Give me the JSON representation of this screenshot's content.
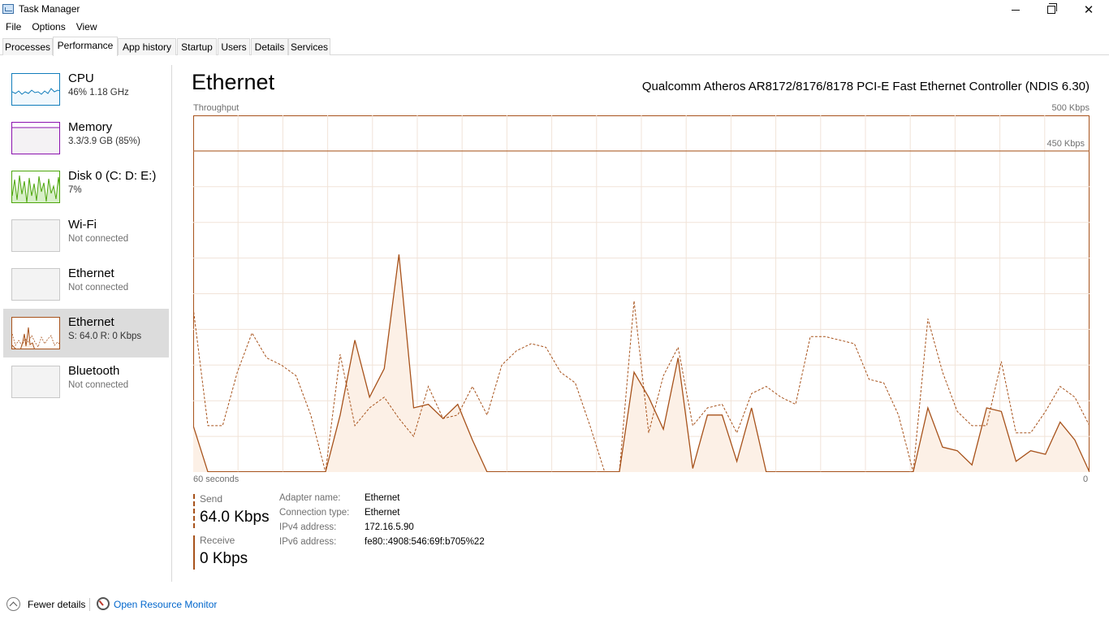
{
  "window": {
    "title": "Task Manager"
  },
  "menu": [
    "File",
    "Options",
    "View"
  ],
  "tabs": [
    {
      "label": "Processes"
    },
    {
      "label": "Performance"
    },
    {
      "label": "App history"
    },
    {
      "label": "Startup"
    },
    {
      "label": "Users"
    },
    {
      "label": "Details"
    },
    {
      "label": "Services"
    }
  ],
  "active_tab": "Performance",
  "sidebar": {
    "items": [
      {
        "name": "CPU",
        "sub": "46% 1.18 GHz"
      },
      {
        "name": "Memory",
        "sub": "3.3/3.9 GB (85%)"
      },
      {
        "name": "Disk 0 (C: D: E:)",
        "sub": "7%"
      },
      {
        "name": "Wi-Fi",
        "sub": "Not connected"
      },
      {
        "name": "Ethernet",
        "sub": "Not connected"
      },
      {
        "name": "Ethernet",
        "sub": "S: 64.0  R: 0 Kbps"
      },
      {
        "name": "Bluetooth",
        "sub": "Not connected"
      }
    ],
    "selected_index": 5
  },
  "main": {
    "title": "Ethernet",
    "adapter_model": "Qualcomm Atheros AR8172/8176/8178 PCI-E Fast Ethernet Controller (NDIS 6.30)",
    "chart_title": "Throughput",
    "max_label": "500 Kbps",
    "limit_label": "450 Kbps",
    "x_left_label": "60 seconds",
    "x_right_label": "0"
  },
  "stats": {
    "send_label": "Send",
    "send_value": "64.0 Kbps",
    "receive_label": "Receive",
    "receive_value": "0 Kbps"
  },
  "properties": [
    {
      "label": "Adapter name:",
      "value": "Ethernet"
    },
    {
      "label": "Connection type:",
      "value": "Ethernet"
    },
    {
      "label": "IPv4 address:",
      "value": "172.16.5.90"
    },
    {
      "label": "IPv6 address:",
      "value": "fe80::4908:546:69f:b705%22"
    }
  ],
  "footer": {
    "fewer_details": "Fewer details",
    "open_resource_monitor": "Open Resource Monitor"
  },
  "colors": {
    "ethernet": "#a7521b",
    "ethernet_fill": "#fcf0e6",
    "grid": "#f1e3d8",
    "cpu": "#117dbb",
    "memory": "#8b12ae",
    "disk": "#4da60c"
  },
  "chart_data": {
    "type": "line",
    "x_range_seconds": [
      60,
      0
    ],
    "ylim": [
      0,
      500
    ],
    "unit": "Kbps",
    "limit_line": 450,
    "series": [
      {
        "name": "Send",
        "style": "dashed",
        "values": [
          230,
          65,
          65,
          140,
          195,
          160,
          150,
          135,
          80,
          0,
          165,
          65,
          90,
          105,
          75,
          50,
          120,
          75,
          80,
          120,
          80,
          150,
          170,
          180,
          175,
          140,
          125,
          65,
          0,
          0,
          240,
          55,
          135,
          175,
          65,
          90,
          95,
          55,
          110,
          120,
          105,
          95,
          190,
          190,
          185,
          180,
          130,
          125,
          80,
          0,
          215,
          140,
          85,
          65,
          65,
          155,
          55,
          55,
          85,
          120,
          105,
          65
        ]
      },
      {
        "name": "Receive",
        "style": "solid",
        "values": [
          65,
          0,
          0,
          0,
          0,
          0,
          0,
          0,
          0,
          0,
          80,
          185,
          105,
          145,
          305,
          90,
          95,
          75,
          95,
          45,
          0,
          0,
          0,
          0,
          0,
          0,
          0,
          0,
          0,
          0,
          140,
          105,
          60,
          160,
          5,
          80,
          80,
          15,
          90,
          0,
          0,
          0,
          0,
          0,
          0,
          0,
          0,
          0,
          0,
          0,
          90,
          35,
          30,
          10,
          90,
          85,
          15,
          30,
          25,
          70,
          45,
          0
        ]
      }
    ]
  }
}
